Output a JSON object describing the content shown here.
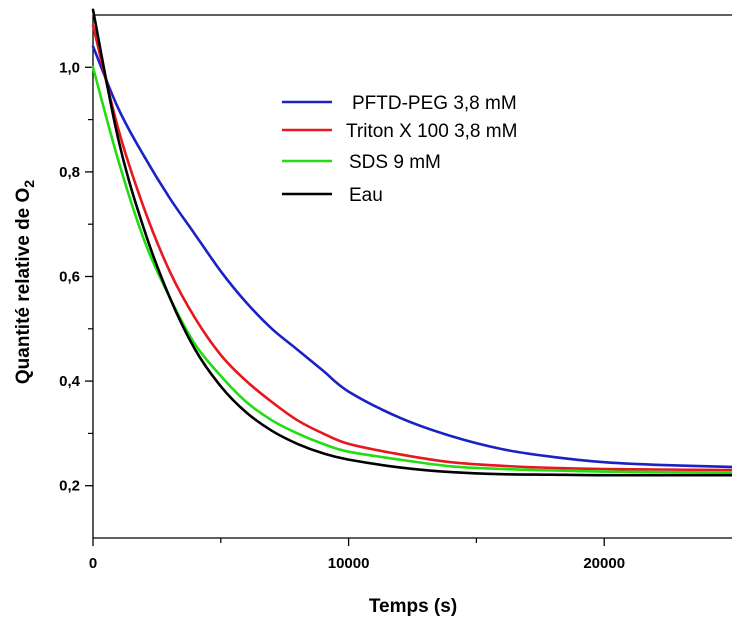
{
  "chart_data": {
    "type": "line",
    "xlabel": "Temps (s)",
    "ylabel_main": "Quantité relative de O",
    "ylabel_sub": "2",
    "xlim": [
      0,
      25000
    ],
    "ylim": [
      0.1,
      1.1
    ],
    "x_ticks": [
      {
        "value": 0,
        "label": "0"
      },
      {
        "value": 10000,
        "label": "10000"
      },
      {
        "value": 20000,
        "label": "20000"
      }
    ],
    "x_minor_ticks": [
      5000,
      15000
    ],
    "y_ticks": [
      {
        "value": 0.2,
        "label": "0,2"
      },
      {
        "value": 0.4,
        "label": "0,4"
      },
      {
        "value": 0.6,
        "label": "0,6"
      },
      {
        "value": 0.8,
        "label": "0,8"
      },
      {
        "value": 1.0,
        "label": "1,0"
      }
    ],
    "y_minor_ticks": [
      0.3,
      0.5,
      0.7,
      0.9
    ],
    "grid": false,
    "legend_position": "top-center",
    "series": [
      {
        "name": "PFTD-PEG 3,8 mM",
        "color": "#1a22c4",
        "x": [
          0,
          1000,
          2000,
          3000,
          4000,
          5000,
          6000,
          7000,
          8000,
          9000,
          10000,
          12000,
          14000,
          16000,
          18000,
          20000,
          22000,
          25000
        ],
        "y": [
          1.04,
          0.92,
          0.83,
          0.75,
          0.68,
          0.61,
          0.55,
          0.5,
          0.46,
          0.42,
          0.38,
          0.33,
          0.295,
          0.27,
          0.255,
          0.245,
          0.24,
          0.236
        ]
      },
      {
        "name": "Triton X 100 3,8 mM",
        "color": "#e8171e",
        "x": [
          0,
          1000,
          2000,
          3000,
          4000,
          5000,
          6000,
          7000,
          8000,
          9000,
          10000,
          12000,
          14000,
          16000,
          18000,
          20000,
          22000,
          25000
        ],
        "y": [
          1.08,
          0.88,
          0.73,
          0.61,
          0.52,
          0.45,
          0.4,
          0.36,
          0.325,
          0.3,
          0.28,
          0.26,
          0.245,
          0.238,
          0.234,
          0.232,
          0.231,
          0.23
        ]
      },
      {
        "name": "SDS 9 mM",
        "color": "#22dd11",
        "x": [
          0,
          1000,
          2000,
          3000,
          4000,
          5000,
          6000,
          7000,
          8000,
          9000,
          10000,
          12000,
          14000,
          16000,
          18000,
          20000,
          22000,
          25000
        ],
        "y": [
          1.0,
          0.82,
          0.67,
          0.56,
          0.47,
          0.41,
          0.36,
          0.325,
          0.3,
          0.28,
          0.265,
          0.25,
          0.237,
          0.232,
          0.229,
          0.227,
          0.226,
          0.225
        ]
      },
      {
        "name": "Eau",
        "color": "#000000",
        "x": [
          0,
          1000,
          2000,
          3000,
          4000,
          5000,
          6000,
          7000,
          8000,
          9000,
          10000,
          12000,
          14000,
          16000,
          18000,
          20000,
          22000,
          25000
        ],
        "y": [
          1.11,
          0.86,
          0.69,
          0.56,
          0.46,
          0.39,
          0.34,
          0.305,
          0.28,
          0.262,
          0.25,
          0.235,
          0.226,
          0.222,
          0.221,
          0.22,
          0.22,
          0.22
        ]
      }
    ]
  }
}
